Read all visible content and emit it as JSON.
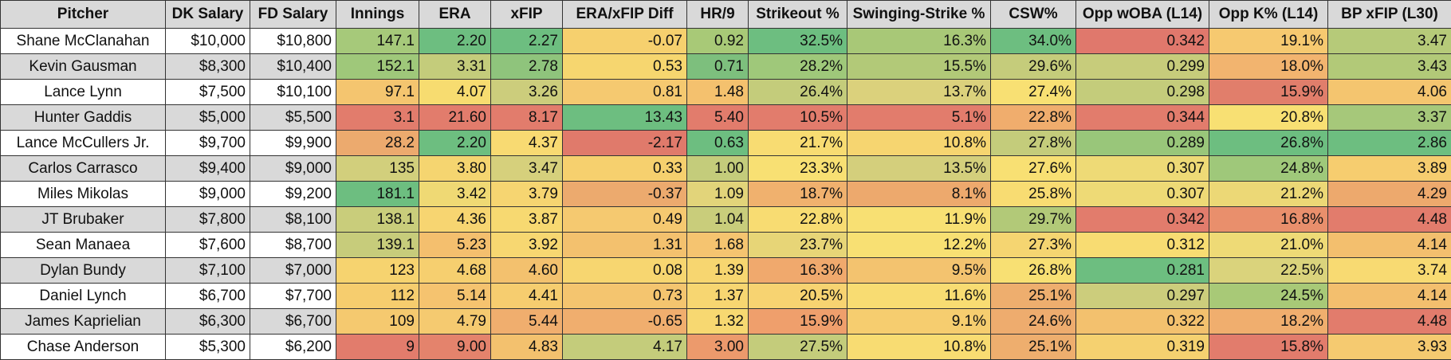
{
  "columns": [
    "Pitcher",
    "DK Salary",
    "FD Salary",
    "Innings",
    "ERA",
    "xFIP",
    "ERA/xFIP Diff",
    "HR/9",
    "Strikeout %",
    "Swinging-Strike %",
    "CSW%",
    "Opp wOBA (L14)",
    "Opp K% (L14)",
    "BP xFIP (L30)"
  ],
  "rows": [
    {
      "cells": [
        "Shane McClanahan",
        "$10,000",
        "$10,800",
        "147.1",
        "2.20",
        "2.27",
        "-0.07",
        "0.92",
        "32.5%",
        "16.3%",
        "34.0%",
        "0.342",
        "19.1%",
        "3.47"
      ],
      "colors": [
        "#a6c97a",
        "#6dbe80",
        "#6dbe80",
        "#f6d06e",
        "#a8c977",
        "#6dbe80",
        "#a8c877",
        "#6dbe80",
        "#e0786c",
        "#f6c970",
        "#b6ca79"
      ]
    },
    {
      "cells": [
        "Kevin Gausman",
        "$8,300",
        "$10,400",
        "152.1",
        "3.31",
        "2.78",
        "0.53",
        "0.71",
        "28.2%",
        "15.5%",
        "29.6%",
        "0.299",
        "18.0%",
        "3.43"
      ],
      "colors": [
        "#9fc87a",
        "#c4cc7b",
        "#8fc47c",
        "#f6d66f",
        "#7dbf7d",
        "#9fc87a",
        "#b2c978",
        "#c5cc7b",
        "#c7cc7b",
        "#f2b46f",
        "#b2c978"
      ]
    },
    {
      "cells": [
        "Lance Lynn",
        "$7,500",
        "$10,100",
        "97.1",
        "4.07",
        "3.26",
        "0.81",
        "1.48",
        "26.4%",
        "13.7%",
        "27.4%",
        "0.298",
        "15.9%",
        "4.06"
      ],
      "colors": [
        "#f4c56f",
        "#f7dc70",
        "#cccd7c",
        "#f5c970",
        "#f4c16e",
        "#c4cc7b",
        "#dbd17c",
        "#f8e073",
        "#c4cc7b",
        "#e17e6b",
        "#f4c56f"
      ]
    },
    {
      "cells": [
        "Hunter Gaddis",
        "$5,000",
        "$5,500",
        "3.1",
        "21.60",
        "8.17",
        "13.43",
        "5.40",
        "10.5%",
        "5.1%",
        "22.8%",
        "0.344",
        "20.8%",
        "3.37"
      ],
      "colors": [
        "#e27c6c",
        "#e27c6c",
        "#e27c6c",
        "#6dbe80",
        "#e27c6c",
        "#e27c6c",
        "#e27c6c",
        "#f0ad6d",
        "#e27c6c",
        "#f8e073",
        "#a6c87a"
      ]
    },
    {
      "cells": [
        "Lance McCullers Jr.",
        "$9,700",
        "$9,900",
        "28.2",
        "2.20",
        "4.37",
        "-2.17",
        "0.63",
        "21.7%",
        "10.8%",
        "27.8%",
        "0.289",
        "26.8%",
        "2.86"
      ],
      "colors": [
        "#ecaa6e",
        "#6dbe80",
        "#f8da72",
        "#e07a6b",
        "#6dbe80",
        "#f8dc72",
        "#f6d570",
        "#c4cc7b",
        "#99c67a",
        "#6dbe80",
        "#6dbe80"
      ]
    },
    {
      "cells": [
        "Carlos Carrasco",
        "$9,400",
        "$9,000",
        "135",
        "3.80",
        "3.47",
        "0.33",
        "1.00",
        "23.3%",
        "13.5%",
        "27.6%",
        "0.307",
        "24.8%",
        "3.89"
      ],
      "colors": [
        "#d2cf7c",
        "#f5d570",
        "#d6d07c",
        "#f6d06e",
        "#c4cc7b",
        "#f8e073",
        "#d4cf7c",
        "#f8e073",
        "#eeda76",
        "#9fc87a",
        "#f6cd6f"
      ]
    },
    {
      "cells": [
        "Miles Mikolas",
        "$9,000",
        "$9,200",
        "181.1",
        "3.42",
        "3.79",
        "-0.37",
        "1.09",
        "18.7%",
        "8.1%",
        "25.8%",
        "0.307",
        "21.2%",
        "4.29"
      ],
      "colors": [
        "#6dbe80",
        "#efd974",
        "#f6d571",
        "#ecaa6e",
        "#e2d47a",
        "#f0b16e",
        "#eda96d",
        "#f8dc72",
        "#eeda76",
        "#ecd876",
        "#eda96d"
      ]
    },
    {
      "cells": [
        "JT Brubaker",
        "$7,800",
        "$8,100",
        "138.1",
        "4.36",
        "3.87",
        "0.49",
        "1.04",
        "22.8%",
        "11.9%",
        "29.7%",
        "0.342",
        "16.8%",
        "4.48"
      ],
      "colors": [
        "#c9cd7b",
        "#f7d571",
        "#f7d971",
        "#f5c970",
        "#c9cd7b",
        "#f8dc72",
        "#f8e073",
        "#b2c978",
        "#e27c6c",
        "#e98f6c",
        "#e27c6c"
      ]
    },
    {
      "cells": [
        "Sean Manaea",
        "$7,600",
        "$8,700",
        "139.1",
        "5.23",
        "3.92",
        "1.31",
        "1.68",
        "23.7%",
        "12.2%",
        "27.3%",
        "0.312",
        "21.0%",
        "4.14"
      ],
      "colors": [
        "#c7cc7b",
        "#f4bf6e",
        "#f7d771",
        "#f3c16e",
        "#f5c470",
        "#e7d577",
        "#f8e073",
        "#f5d571",
        "#f8dc72",
        "#eeda76",
        "#f3bf6e"
      ]
    },
    {
      "cells": [
        "Dylan Bundy",
        "$7,100",
        "$7,000",
        "123",
        "4.68",
        "4.60",
        "0.08",
        "1.39",
        "16.3%",
        "9.5%",
        "26.8%",
        "0.281",
        "22.5%",
        "3.74"
      ],
      "colors": [
        "#f6d36f",
        "#f6cf6f",
        "#f3c16e",
        "#f7d670",
        "#f7d670",
        "#f0a96d",
        "#f3c36f",
        "#f8e073",
        "#6dbe80",
        "#dad37c",
        "#f8da72"
      ]
    },
    {
      "cells": [
        "Daniel Lynch",
        "$6,700",
        "$7,700",
        "112",
        "5.14",
        "4.41",
        "0.73",
        "1.37",
        "20.5%",
        "11.6%",
        "25.1%",
        "0.297",
        "24.5%",
        "4.14"
      ],
      "colors": [
        "#f6cd6e",
        "#f5c36f",
        "#f6cd6f",
        "#f4c56f",
        "#f7d671",
        "#f7d371",
        "#f8dc72",
        "#eeae6e",
        "#cccd7c",
        "#a8c977",
        "#f3bf6e"
      ]
    },
    {
      "cells": [
        "James Kaprielian",
        "$6,300",
        "$6,700",
        "109",
        "4.79",
        "5.44",
        "-0.65",
        "1.32",
        "15.9%",
        "9.1%",
        "24.6%",
        "0.322",
        "18.2%",
        "4.48"
      ],
      "colors": [
        "#f5c96f",
        "#f5ca70",
        "#f0ae6e",
        "#f0ae6e",
        "#f7d871",
        "#ef9f6c",
        "#f6cd6f",
        "#eeac6e",
        "#f3c16e",
        "#f0ae6e",
        "#e27c6c"
      ]
    },
    {
      "cells": [
        "Chase Anderson",
        "$5,300",
        "$6,200",
        "9",
        "9.00",
        "4.83",
        "4.17",
        "3.00",
        "27.5%",
        "10.8%",
        "25.1%",
        "0.319",
        "15.8%",
        "3.93"
      ],
      "colors": [
        "#e27c6c",
        "#e4836c",
        "#f3c16e",
        "#c4cc7b",
        "#ec9a6c",
        "#c4cc7b",
        "#f8dc72",
        "#eeae6e",
        "#f5d170",
        "#e27c6c",
        "#f5ca70"
      ]
    }
  ]
}
